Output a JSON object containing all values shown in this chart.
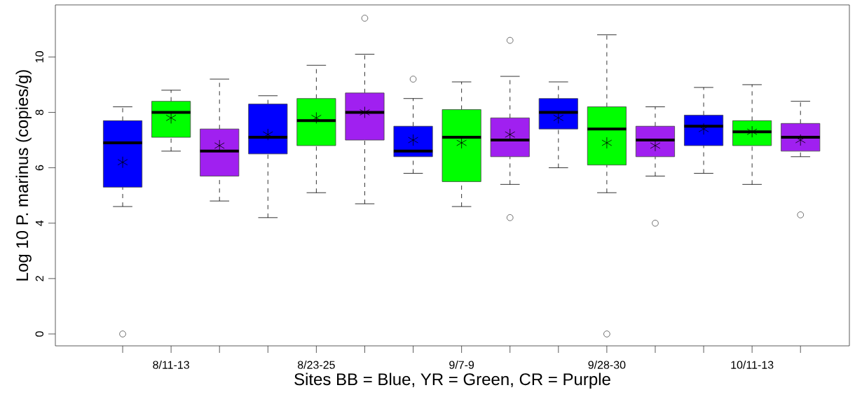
{
  "chart_data": {
    "type": "box",
    "xlabel": "Sites BB = Blue, YR = Green, CR = Purple",
    "ylabel": "Log 10 P. marinus (copies/g)",
    "categories": [
      null,
      "8/11-13",
      null,
      null,
      "8/23-25",
      null,
      null,
      "9/7-9",
      null,
      null,
      "9/28-30",
      null,
      null,
      "10/11-13",
      null
    ],
    "colors": [
      "#0000ff",
      "#00ff00",
      "#a020f0",
      "#0000ff",
      "#00ff00",
      "#a020f0",
      "#0000ff",
      "#00ff00",
      "#a020f0",
      "#0000ff",
      "#00ff00",
      "#a020f0",
      "#0000ff",
      "#00ff00",
      "#a020f0"
    ],
    "boxes": [
      {
        "low": 4.6,
        "q1": 5.3,
        "median": 6.9,
        "q3": 7.7,
        "high": 8.2,
        "mean": 6.2,
        "outliers": [
          0
        ]
      },
      {
        "low": 6.6,
        "q1": 7.1,
        "median": 8.0,
        "q3": 8.4,
        "high": 8.8,
        "mean": 7.8
      },
      {
        "low": 4.8,
        "q1": 5.7,
        "median": 6.6,
        "q3": 7.4,
        "high": 9.2,
        "mean": 6.8
      },
      {
        "low": 4.2,
        "q1": 6.5,
        "median": 7.1,
        "q3": 8.3,
        "high": 8.6,
        "mean": 7.2
      },
      {
        "low": 5.1,
        "q1": 6.8,
        "median": 7.7,
        "q3": 8.5,
        "high": 9.7,
        "mean": 7.8
      },
      {
        "low": 4.7,
        "q1": 7.0,
        "median": 8.0,
        "q3": 8.7,
        "high": 10.1,
        "mean": 8.0,
        "outliers": [
          11.4
        ]
      },
      {
        "low": 5.8,
        "q1": 6.4,
        "median": 6.6,
        "q3": 7.5,
        "high": 8.5,
        "mean": 7.0,
        "outliers": [
          9.2
        ]
      },
      {
        "low": 4.6,
        "q1": 5.5,
        "median": 7.1,
        "q3": 8.1,
        "high": 9.1,
        "mean": 6.9
      },
      {
        "low": 5.4,
        "q1": 6.4,
        "median": 7.0,
        "q3": 7.8,
        "high": 9.3,
        "mean": 7.2,
        "outliers": [
          10.6,
          4.2
        ]
      },
      {
        "low": 6.0,
        "q1": 7.4,
        "median": 8.0,
        "q3": 8.5,
        "high": 9.1,
        "mean": 7.8
      },
      {
        "low": 5.1,
        "q1": 6.1,
        "median": 7.4,
        "q3": 8.2,
        "high": 10.8,
        "mean": 6.9,
        "outliers": [
          0
        ]
      },
      {
        "low": 5.7,
        "q1": 6.4,
        "median": 7.0,
        "q3": 7.5,
        "high": 8.2,
        "mean": 6.8,
        "outliers": [
          4.0
        ]
      },
      {
        "low": 5.8,
        "q1": 6.8,
        "median": 7.5,
        "q3": 7.9,
        "high": 8.9,
        "mean": 7.4
      },
      {
        "low": 5.4,
        "q1": 6.8,
        "median": 7.3,
        "q3": 7.7,
        "high": 9.0,
        "mean": 7.3
      },
      {
        "low": 6.4,
        "q1": 6.6,
        "median": 7.1,
        "q3": 7.6,
        "high": 8.4,
        "mean": 7.0,
        "outliers": [
          4.3
        ]
      }
    ],
    "ylim": [
      -0.43,
      11.88
    ],
    "yticks": [
      0,
      2,
      4,
      6,
      8,
      10
    ],
    "grid": false
  }
}
